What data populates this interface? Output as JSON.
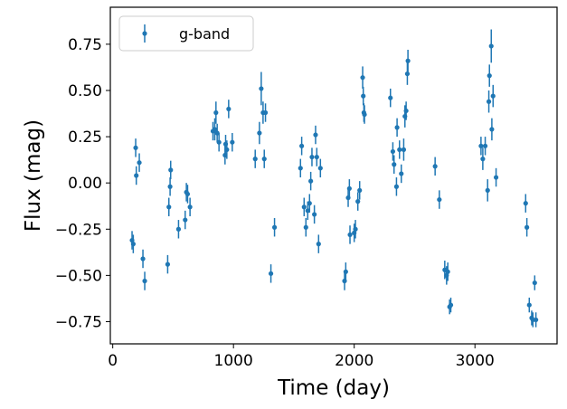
{
  "chart_data": {
    "type": "scatter",
    "xlabel": "Time (day)",
    "ylabel": "Flux (mag)",
    "xlim": [
      -20,
      3680
    ],
    "ylim": [
      -0.87,
      0.95
    ],
    "xticks": [
      0,
      1000,
      2000,
      3000
    ],
    "yticks": [
      -0.75,
      -0.5,
      -0.25,
      0.0,
      0.25,
      0.5,
      0.75
    ],
    "xtick_labels": [
      "0",
      "1000",
      "2000",
      "3000"
    ],
    "ytick_labels": [
      "−0.75",
      "−0.50",
      "−0.25",
      "0.00",
      "0.25",
      "0.50",
      "0.75"
    ],
    "grid": false,
    "legend_position": "top-left",
    "series": [
      {
        "name": "g-band",
        "color": "#1f77b4",
        "marker": "point-with-errorbar",
        "points": [
          [
            160,
            -0.31,
            0.05
          ],
          [
            170,
            -0.33,
            0.05
          ],
          [
            190,
            0.19,
            0.05
          ],
          [
            195,
            0.04,
            0.05
          ],
          [
            220,
            0.11,
            0.05
          ],
          [
            250,
            -0.41,
            0.05
          ],
          [
            265,
            -0.53,
            0.05
          ],
          [
            455,
            -0.44,
            0.05
          ],
          [
            465,
            -0.13,
            0.05
          ],
          [
            475,
            -0.02,
            0.05
          ],
          [
            480,
            0.07,
            0.05
          ],
          [
            545,
            -0.25,
            0.05
          ],
          [
            600,
            -0.2,
            0.05
          ],
          [
            610,
            -0.05,
            0.05
          ],
          [
            620,
            -0.06,
            0.05
          ],
          [
            640,
            -0.13,
            0.05
          ],
          [
            830,
            0.28,
            0.05
          ],
          [
            845,
            0.29,
            0.06
          ],
          [
            855,
            0.38,
            0.06
          ],
          [
            865,
            0.27,
            0.05
          ],
          [
            880,
            0.22,
            0.05
          ],
          [
            930,
            0.15,
            0.05
          ],
          [
            935,
            0.21,
            0.05
          ],
          [
            945,
            0.18,
            0.05
          ],
          [
            960,
            0.4,
            0.05
          ],
          [
            990,
            0.22,
            0.05
          ],
          [
            1180,
            0.13,
            0.05
          ],
          [
            1215,
            0.27,
            0.06
          ],
          [
            1230,
            0.51,
            0.09
          ],
          [
            1245,
            0.38,
            0.06
          ],
          [
            1255,
            0.13,
            0.05
          ],
          [
            1265,
            0.38,
            0.05
          ],
          [
            1310,
            -0.49,
            0.05
          ],
          [
            1340,
            -0.24,
            0.05
          ],
          [
            1555,
            0.08,
            0.05
          ],
          [
            1565,
            0.2,
            0.05
          ],
          [
            1585,
            -0.13,
            0.05
          ],
          [
            1600,
            -0.24,
            0.05
          ],
          [
            1615,
            -0.15,
            0.05
          ],
          [
            1630,
            -0.11,
            0.05
          ],
          [
            1640,
            0.01,
            0.05
          ],
          [
            1650,
            0.14,
            0.05
          ],
          [
            1670,
            -0.17,
            0.05
          ],
          [
            1680,
            0.26,
            0.05
          ],
          [
            1690,
            0.14,
            0.05
          ],
          [
            1705,
            -0.33,
            0.05
          ],
          [
            1720,
            0.08,
            0.05
          ],
          [
            1920,
            -0.53,
            0.05
          ],
          [
            1930,
            -0.48,
            0.05
          ],
          [
            1950,
            -0.08,
            0.05
          ],
          [
            1960,
            -0.03,
            0.05
          ],
          [
            1965,
            -0.28,
            0.05
          ],
          [
            2000,
            -0.27,
            0.05
          ],
          [
            2010,
            -0.25,
            0.05
          ],
          [
            2030,
            -0.1,
            0.05
          ],
          [
            2045,
            -0.04,
            0.05
          ],
          [
            2070,
            0.57,
            0.06
          ],
          [
            2075,
            0.47,
            0.05
          ],
          [
            2080,
            0.38,
            0.05
          ],
          [
            2085,
            0.37,
            0.05
          ],
          [
            2300,
            0.46,
            0.05
          ],
          [
            2320,
            0.17,
            0.05
          ],
          [
            2330,
            0.1,
            0.05
          ],
          [
            2350,
            -0.02,
            0.05
          ],
          [
            2355,
            0.3,
            0.05
          ],
          [
            2375,
            0.18,
            0.05
          ],
          [
            2390,
            0.05,
            0.05
          ],
          [
            2410,
            0.18,
            0.06
          ],
          [
            2420,
            0.36,
            0.06
          ],
          [
            2430,
            0.39,
            0.05
          ],
          [
            2440,
            0.59,
            0.06
          ],
          [
            2445,
            0.66,
            0.06
          ],
          [
            2670,
            0.09,
            0.05
          ],
          [
            2705,
            -0.09,
            0.05
          ],
          [
            2750,
            -0.47,
            0.05
          ],
          [
            2765,
            -0.5,
            0.05
          ],
          [
            2775,
            -0.48,
            0.05
          ],
          [
            2790,
            -0.67,
            0.04
          ],
          [
            2800,
            -0.66,
            0.04
          ],
          [
            3050,
            0.2,
            0.05
          ],
          [
            3065,
            0.13,
            0.06
          ],
          [
            3085,
            0.2,
            0.05
          ],
          [
            3105,
            -0.04,
            0.06
          ],
          [
            3115,
            0.44,
            0.06
          ],
          [
            3120,
            0.58,
            0.06
          ],
          [
            3135,
            0.74,
            0.09
          ],
          [
            3140,
            0.29,
            0.06
          ],
          [
            3150,
            0.47,
            0.06
          ],
          [
            3175,
            0.03,
            0.05
          ],
          [
            3420,
            -0.11,
            0.05
          ],
          [
            3430,
            -0.24,
            0.05
          ],
          [
            3450,
            -0.66,
            0.04
          ],
          [
            3470,
            -0.73,
            0.04
          ],
          [
            3480,
            -0.74,
            0.04
          ],
          [
            3495,
            -0.54,
            0.04
          ],
          [
            3505,
            -0.74,
            0.04
          ]
        ]
      }
    ]
  }
}
